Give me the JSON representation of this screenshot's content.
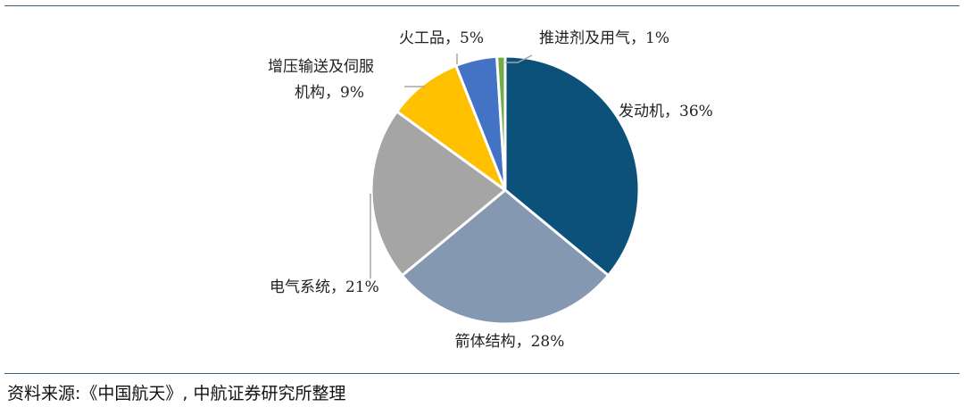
{
  "chart_data": {
    "type": "pie",
    "title": "",
    "slices": [
      {
        "label": "发动机",
        "value": 36,
        "color": "#0c5179",
        "display": [
          "发动机，36%"
        ]
      },
      {
        "label": "箭体结构",
        "value": 28,
        "color": "#8598b1",
        "display": [
          "箭体结构，28%"
        ]
      },
      {
        "label": "电气系统",
        "value": 21,
        "color": "#a5a5a5",
        "display": [
          "电气系统，21%"
        ]
      },
      {
        "label": "增压输送及伺服机构",
        "value": 9,
        "color": "#ffc000",
        "display": [
          "增压输送及伺服",
          "机构，9%"
        ]
      },
      {
        "label": "火工品",
        "value": 5,
        "color": "#4472c4",
        "display": [
          "火工品，5%"
        ]
      },
      {
        "label": "推进剂及用气",
        "value": 1,
        "color": "#70ad47",
        "display": [
          "推进剂及用气，1%"
        ]
      }
    ]
  },
  "source": "资料来源:《中国航天》, 中航证券研究所整理"
}
